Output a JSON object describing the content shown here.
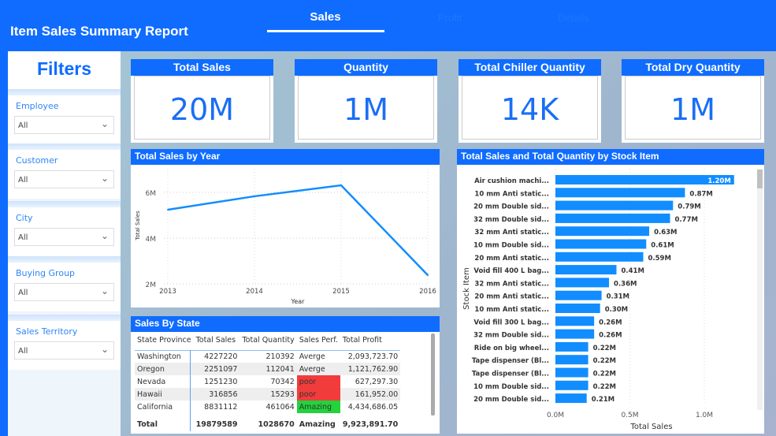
{
  "header": {
    "title": "Item Sales Summary Report",
    "tabs": [
      {
        "label": "Sales",
        "active": true
      },
      {
        "label": "Profit",
        "active": false
      },
      {
        "label": "Details",
        "active": false
      }
    ]
  },
  "filters": {
    "title": "Filters",
    "slicers": [
      {
        "label": "Employee",
        "value": "All"
      },
      {
        "label": "Customer",
        "value": "All"
      },
      {
        "label": "City",
        "value": "All"
      },
      {
        "label": "Buying Group",
        "value": "All"
      },
      {
        "label": "Sales Territory",
        "value": "All"
      }
    ]
  },
  "kpis": [
    {
      "title": "Total Sales",
      "value": "20M"
    },
    {
      "title": "Quantity",
      "value": "1M"
    },
    {
      "title": "Total Chiller Quantity",
      "value": "14K"
    },
    {
      "title": "Total Dry Quantity",
      "value": "1M"
    }
  ],
  "colors": {
    "brand": "#0f6cff",
    "bar": "#118dff",
    "poor": "#f23c3c",
    "amazing": "#22d33c"
  },
  "chart_data": [
    {
      "type": "line",
      "title": "Total Sales by Year",
      "xlabel": "Year",
      "ylabel": "Total Sales",
      "x": [
        "2013",
        "2014",
        "2015",
        "2016"
      ],
      "values": [
        5.24,
        5.83,
        6.31,
        2.38
      ],
      "yunit": "M",
      "yticks": [
        "2M",
        "4M",
        "6M"
      ],
      "ylim": [
        2,
        6.6
      ],
      "grid": true
    },
    {
      "type": "bar",
      "orientation": "horizontal",
      "title": "Total Sales and Total Quantity by Stock Item",
      "xlabel": "Total Sales",
      "ylabel": "Stock Item",
      "xticks": [
        "0.0M",
        "0.5M",
        "1.0M"
      ],
      "xlim": [
        0,
        1.25
      ],
      "categories": [
        "Air cushion machi...",
        "10 mm Anti static...",
        "20 mm Double sid...",
        "32 mm Double sid...",
        "32 mm Anti static...",
        "10 mm Double sid...",
        "20 mm Anti static...",
        "Void fill 400 L bag...",
        "32 mm Anti static...",
        "20 mm Anti static...",
        "10 mm Anti static...",
        "Void fill 300 L bag...",
        "32 mm Double sid...",
        "Ride on big wheel...",
        "Tape dispenser (Bl...",
        "Tape dispenser (Bl...",
        "10 mm Double sid...",
        "20 mm Double sid..."
      ],
      "values": [
        1.2,
        0.87,
        0.79,
        0.77,
        0.63,
        0.61,
        0.59,
        0.41,
        0.36,
        0.31,
        0.3,
        0.26,
        0.26,
        0.22,
        0.22,
        0.22,
        0.22,
        0.21
      ],
      "labels": [
        "1.20M",
        "0.87M",
        "0.79M",
        "0.77M",
        "0.63M",
        "0.61M",
        "0.59M",
        "0.41M",
        "0.36M",
        "0.31M",
        "0.30M",
        "0.26M",
        "0.26M",
        "0.22M",
        "0.22M",
        "0.22M",
        "0.22M",
        "0.21M"
      ]
    }
  ],
  "table": {
    "title": "Sales By State",
    "columns": [
      "State Province",
      "Total Sales",
      "Total Quantity",
      "Sales Perf.",
      "Total Profit"
    ],
    "rows": [
      [
        "Washington",
        "4227220",
        "210392",
        "Averge",
        "2,093,723.70"
      ],
      [
        "Oregon",
        "2251097",
        "112041",
        "Averge",
        "1,121,762.90"
      ],
      [
        "Nevada",
        "1251230",
        "70342",
        "poor",
        "627,297.30"
      ],
      [
        "Hawaii",
        "316856",
        "15293",
        "poor",
        "161,952.00"
      ],
      [
        "California",
        "8831112",
        "461064",
        "Amazing",
        "4,434,686.05"
      ]
    ],
    "total": [
      "Total",
      "19879589",
      "1028670",
      "Amazing",
      "9,923,891.70"
    ]
  }
}
